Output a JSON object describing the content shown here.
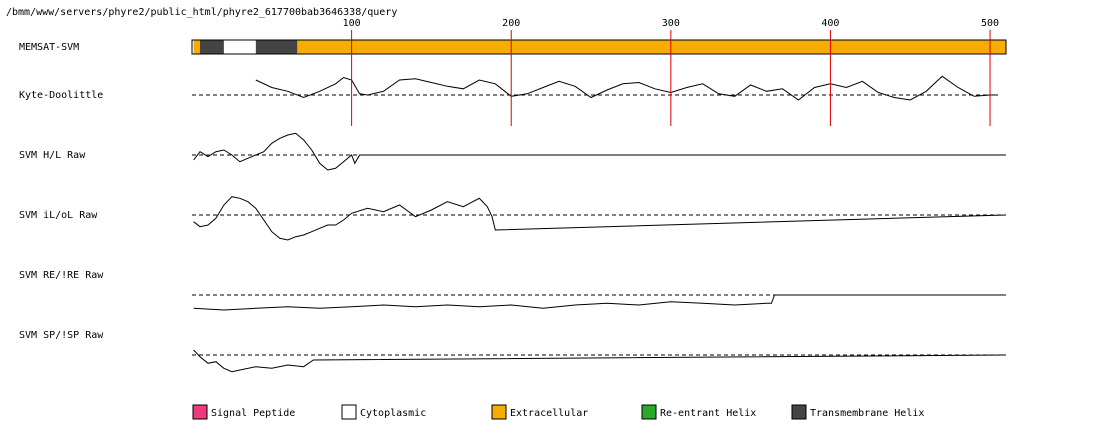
{
  "path": "/bmm/www/servers/phyre2/public_html/phyre2_617700bab3646338/query",
  "chart_data": {
    "type": "line",
    "xlim": [
      0,
      510
    ],
    "x_ticks": [
      100,
      200,
      300,
      400,
      500
    ],
    "tick_labels": [
      "100",
      "200",
      "300",
      "400",
      "500"
    ],
    "segments": [
      {
        "start": 1,
        "end": 5,
        "type": "Extracellular"
      },
      {
        "start": 5,
        "end": 20,
        "type": "Transmembrane Helix"
      },
      {
        "start": 20,
        "end": 40,
        "type": "Cytoplasmic"
      },
      {
        "start": 40,
        "end": 66,
        "type": "Transmembrane Helix"
      },
      {
        "start": 66,
        "end": 510,
        "type": "Extracellular"
      }
    ],
    "tracks": [
      {
        "label": "MEMSAT-SVM",
        "kind": "topology"
      },
      {
        "label": "Kyte-Doolittle",
        "kind": "line",
        "end": 505,
        "baseline": 0,
        "range": [
          -2,
          1.5
        ],
        "x": [
          0,
          10,
          20,
          30,
          40,
          50,
          60,
          70,
          80,
          90,
          95,
          100,
          105,
          110,
          120,
          130,
          140,
          150,
          160,
          170,
          180,
          190,
          200,
          210,
          220,
          230,
          240,
          250,
          260,
          270,
          280,
          290,
          300,
          310,
          320,
          330,
          340,
          350,
          360,
          370,
          380,
          390,
          400,
          410,
          420,
          430,
          440,
          450,
          460,
          470,
          480,
          490,
          500,
          505
        ],
        "y": [
          null,
          null,
          null,
          null,
          1.2,
          0.6,
          0.3,
          -0.2,
          0.3,
          0.9,
          1.4,
          1.2,
          0.1,
          0.0,
          0.3,
          1.2,
          1.3,
          1.0,
          0.7,
          0.5,
          1.2,
          0.9,
          -0.1,
          0.1,
          0.6,
          1.1,
          0.7,
          -0.2,
          0.4,
          0.9,
          1.0,
          0.5,
          0.2,
          0.6,
          0.9,
          0.1,
          -0.1,
          0.8,
          0.3,
          0.5,
          -0.4,
          0.6,
          0.9,
          0.6,
          1.1,
          0.2,
          -0.2,
          -0.4,
          0.3,
          1.5,
          0.6,
          -0.1,
          0.0,
          0.0
        ]
      },
      {
        "label": "SVM H/L Raw",
        "kind": "line",
        "end": 510,
        "baseline": 0,
        "range": [
          -1.5,
          1.5
        ],
        "x": [
          1,
          5,
          10,
          15,
          20,
          25,
          30,
          35,
          40,
          45,
          50,
          55,
          60,
          65,
          70,
          75,
          80,
          85,
          90,
          95,
          100,
          102,
          105,
          510
        ],
        "y": [
          -0.3,
          0.2,
          -0.1,
          0.2,
          0.3,
          0.0,
          -0.4,
          -0.2,
          0.0,
          0.2,
          0.7,
          1.0,
          1.2,
          1.3,
          0.9,
          0.3,
          -0.5,
          -0.9,
          -0.8,
          -0.4,
          0.0,
          -0.5,
          0.0,
          0.0
        ]
      },
      {
        "label": "SVM iL/oL Raw",
        "kind": "line",
        "end": 510,
        "baseline": 0,
        "range": [
          -1.5,
          1.5
        ],
        "x": [
          1,
          5,
          10,
          15,
          20,
          25,
          30,
          35,
          40,
          45,
          50,
          55,
          60,
          65,
          70,
          75,
          80,
          85,
          90,
          95,
          100,
          110,
          120,
          130,
          140,
          150,
          160,
          170,
          180,
          185,
          188,
          190,
          510
        ],
        "y": [
          -0.4,
          -0.7,
          -0.6,
          -0.2,
          0.6,
          1.1,
          1.0,
          0.8,
          0.4,
          -0.3,
          -1.0,
          -1.4,
          -1.5,
          -1.3,
          -1.2,
          -1.0,
          -0.8,
          -0.6,
          -0.6,
          -0.3,
          0.1,
          0.4,
          0.2,
          0.6,
          -0.1,
          0.3,
          0.8,
          0.5,
          1.0,
          0.5,
          -0.1,
          -0.9,
          0.0
        ]
      },
      {
        "label": "SVM RE/!RE Raw",
        "kind": "line",
        "end": 510,
        "baseline": 0,
        "range": [
          -1.5,
          1.5
        ],
        "x": [
          1,
          20,
          40,
          60,
          80,
          100,
          120,
          140,
          160,
          180,
          200,
          220,
          240,
          260,
          280,
          300,
          320,
          340,
          360,
          363,
          365,
          510
        ],
        "y": [
          -0.8,
          -0.9,
          -0.8,
          -0.7,
          -0.8,
          -0.7,
          -0.6,
          -0.7,
          -0.6,
          -0.7,
          -0.6,
          -0.8,
          -0.6,
          -0.5,
          -0.6,
          -0.4,
          -0.5,
          -0.6,
          -0.5,
          -0.5,
          0.0,
          0.0
        ]
      },
      {
        "label": "SVM SP/!SP Raw",
        "kind": "line",
        "end": 510,
        "baseline": 0,
        "range": [
          -1.5,
          1.5
        ],
        "x": [
          1,
          5,
          10,
          15,
          20,
          25,
          30,
          40,
          50,
          60,
          70,
          76,
          510
        ],
        "y": [
          0.3,
          -0.1,
          -0.5,
          -0.4,
          -0.8,
          -1.0,
          -0.9,
          -0.7,
          -0.8,
          -0.6,
          -0.7,
          -0.3,
          0.0
        ]
      }
    ]
  },
  "legend": [
    {
      "label": "Signal Peptide",
      "color": "#f0387f"
    },
    {
      "label": "Cytoplasmic",
      "color": "#ffffff"
    },
    {
      "label": "Extracellular",
      "color": "#f6ac00"
    },
    {
      "label": "Re-entrant Helix",
      "color": "#2aaa2a"
    },
    {
      "label": "Transmembrane Helix",
      "color": "#444444"
    }
  ],
  "colors": {
    "Extracellular": "#f6ac00",
    "Transmembrane Helix": "#444444",
    "Cytoplasmic": "#ffffff",
    "tick": "#dd0000"
  }
}
